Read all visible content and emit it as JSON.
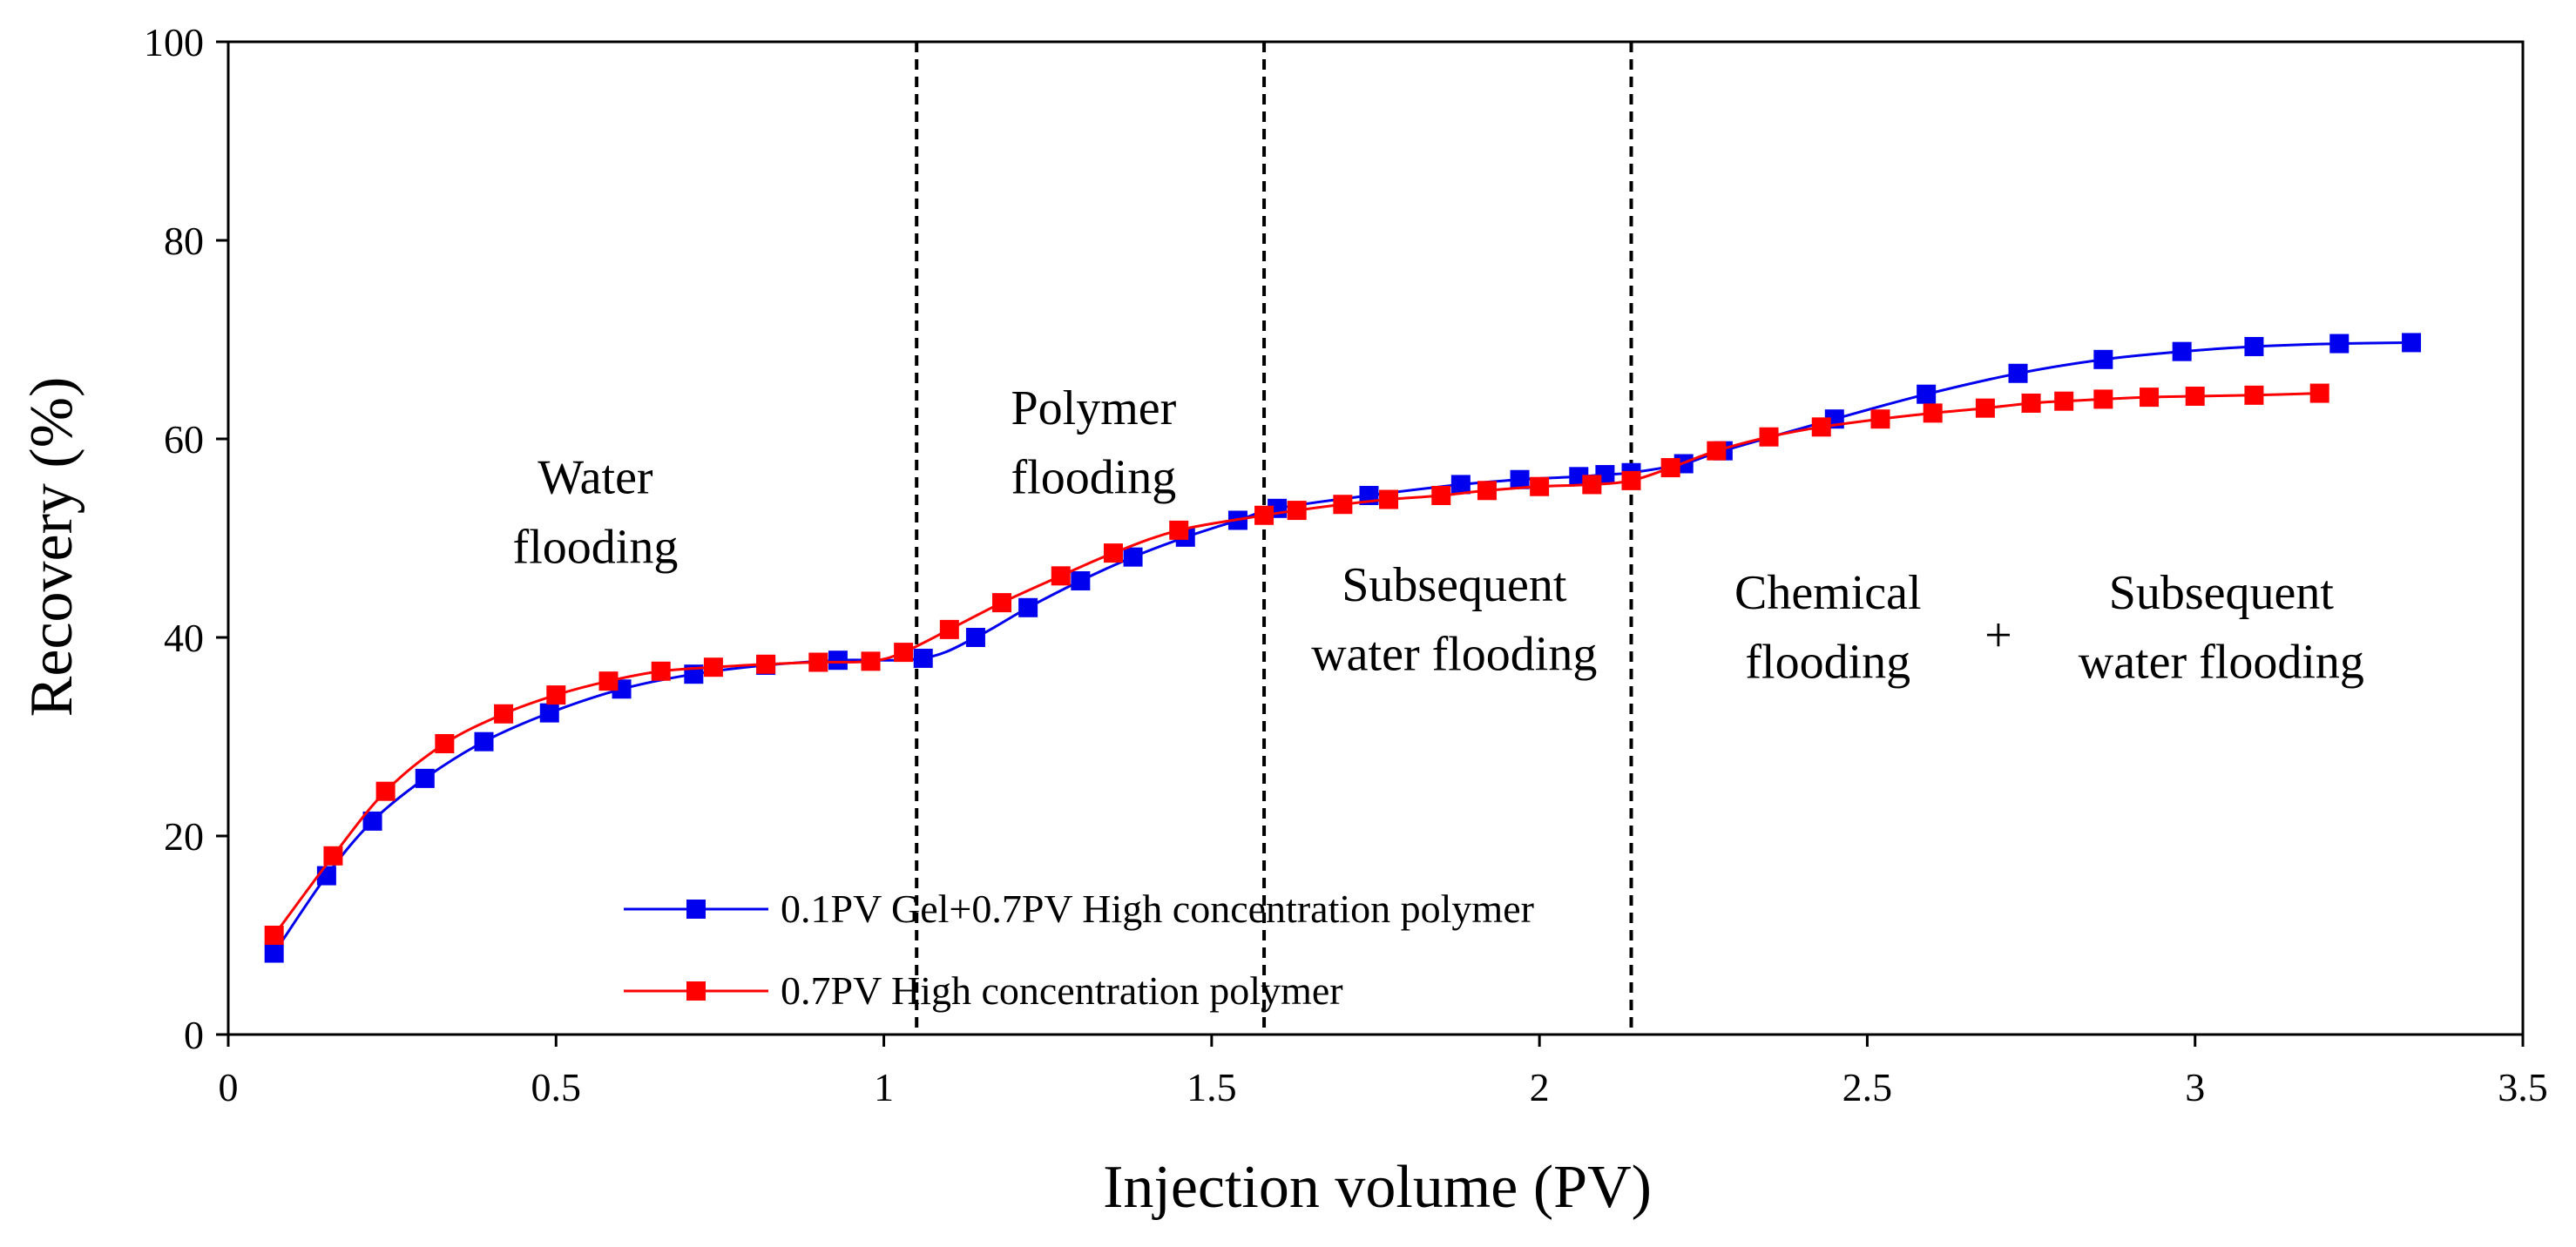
{
  "chart_data": {
    "type": "line",
    "title": "",
    "xlabel": "Injection volume (PV)",
    "ylabel": "Recovery (%)",
    "xlim": [
      0,
      3.5
    ],
    "ylim": [
      0,
      100
    ],
    "xticks": [
      0,
      0.5,
      1,
      1.5,
      2,
      2.5,
      3,
      3.5
    ],
    "xtick_labels": [
      "0",
      "0.5",
      "1",
      "1.5",
      "2",
      "2.5",
      "3",
      "3.5"
    ],
    "yticks": [
      0,
      20,
      40,
      60,
      80,
      100
    ],
    "ytick_labels": [
      "0",
      "20",
      "40",
      "60",
      "80",
      "100"
    ],
    "grid": false,
    "legend_position": "bottom-left",
    "phase_boundaries": [
      1.05,
      1.58,
      2.14
    ],
    "annotations": [
      {
        "lines": [
          "Water",
          "flooding"
        ],
        "x": 0.56,
        "y": [
          54.5,
          47.5
        ]
      },
      {
        "lines": [
          "Polymer",
          "flooding"
        ],
        "x": 1.32,
        "y": [
          61.5,
          54.5
        ]
      },
      {
        "lines": [
          "Subsequent",
          "water flooding"
        ],
        "x": 1.87,
        "y": [
          43.7,
          36.7
        ]
      },
      {
        "lines": [
          "Chemical",
          "flooding"
        ],
        "x": 2.44,
        "y": [
          42.9,
          35.9
        ]
      },
      {
        "lines": [
          "+"
        ],
        "x": 2.7,
        "y": [
          38.6
        ]
      },
      {
        "lines": [
          "Subsequent",
          "water flooding"
        ],
        "x": 3.04,
        "y": [
          42.9,
          35.9
        ]
      }
    ],
    "series": [
      {
        "name": "0.1PV Gel+0.7PV High concentration polymer",
        "color": "#0000ee",
        "x": [
          0.07,
          0.15,
          0.22,
          0.3,
          0.39,
          0.49,
          0.6,
          0.71,
          0.82,
          0.93,
          1.06,
          1.14,
          1.22,
          1.3,
          1.38,
          1.46,
          1.54,
          1.6,
          1.74,
          1.88,
          1.97,
          2.06,
          2.1,
          2.14,
          2.22,
          2.28,
          2.45,
          2.59,
          2.73,
          2.86,
          2.98,
          3.09,
          3.22,
          3.33
        ],
        "y": [
          8.2,
          16,
          21.5,
          25.8,
          29.5,
          32.4,
          34.8,
          36.3,
          37.2,
          37.7,
          37.9,
          40,
          43,
          45.7,
          48.1,
          50.1,
          51.8,
          53,
          54.3,
          55.4,
          55.9,
          56.2,
          56.4,
          56.6,
          57.5,
          58.8,
          62,
          64.5,
          66.6,
          68,
          68.8,
          69.3,
          69.6,
          69.7
        ]
      },
      {
        "name": "0.7PV High concentration polymer",
        "color": "#ff0000",
        "x": [
          0.07,
          0.16,
          0.24,
          0.33,
          0.42,
          0.5,
          0.58,
          0.66,
          0.74,
          0.82,
          0.9,
          0.98,
          1.03,
          1.1,
          1.18,
          1.27,
          1.35,
          1.45,
          1.58,
          1.63,
          1.7,
          1.77,
          1.85,
          1.92,
          2.0,
          2.08,
          2.14,
          2.2,
          2.27,
          2.35,
          2.43,
          2.52,
          2.6,
          2.68,
          2.75,
          2.8,
          2.86,
          2.93,
          3.0,
          3.09,
          3.19
        ],
        "y": [
          10,
          18,
          24.5,
          29.3,
          32.3,
          34.2,
          35.6,
          36.6,
          37,
          37.3,
          37.5,
          37.6,
          38.5,
          40.8,
          43.5,
          46.2,
          48.5,
          50.8,
          52.3,
          52.8,
          53.4,
          53.9,
          54.3,
          54.8,
          55.2,
          55.4,
          55.8,
          57.1,
          58.8,
          60.2,
          61.2,
          62,
          62.6,
          63.1,
          63.6,
          63.8,
          64,
          64.2,
          64.3,
          64.4,
          64.6
        ]
      }
    ]
  }
}
